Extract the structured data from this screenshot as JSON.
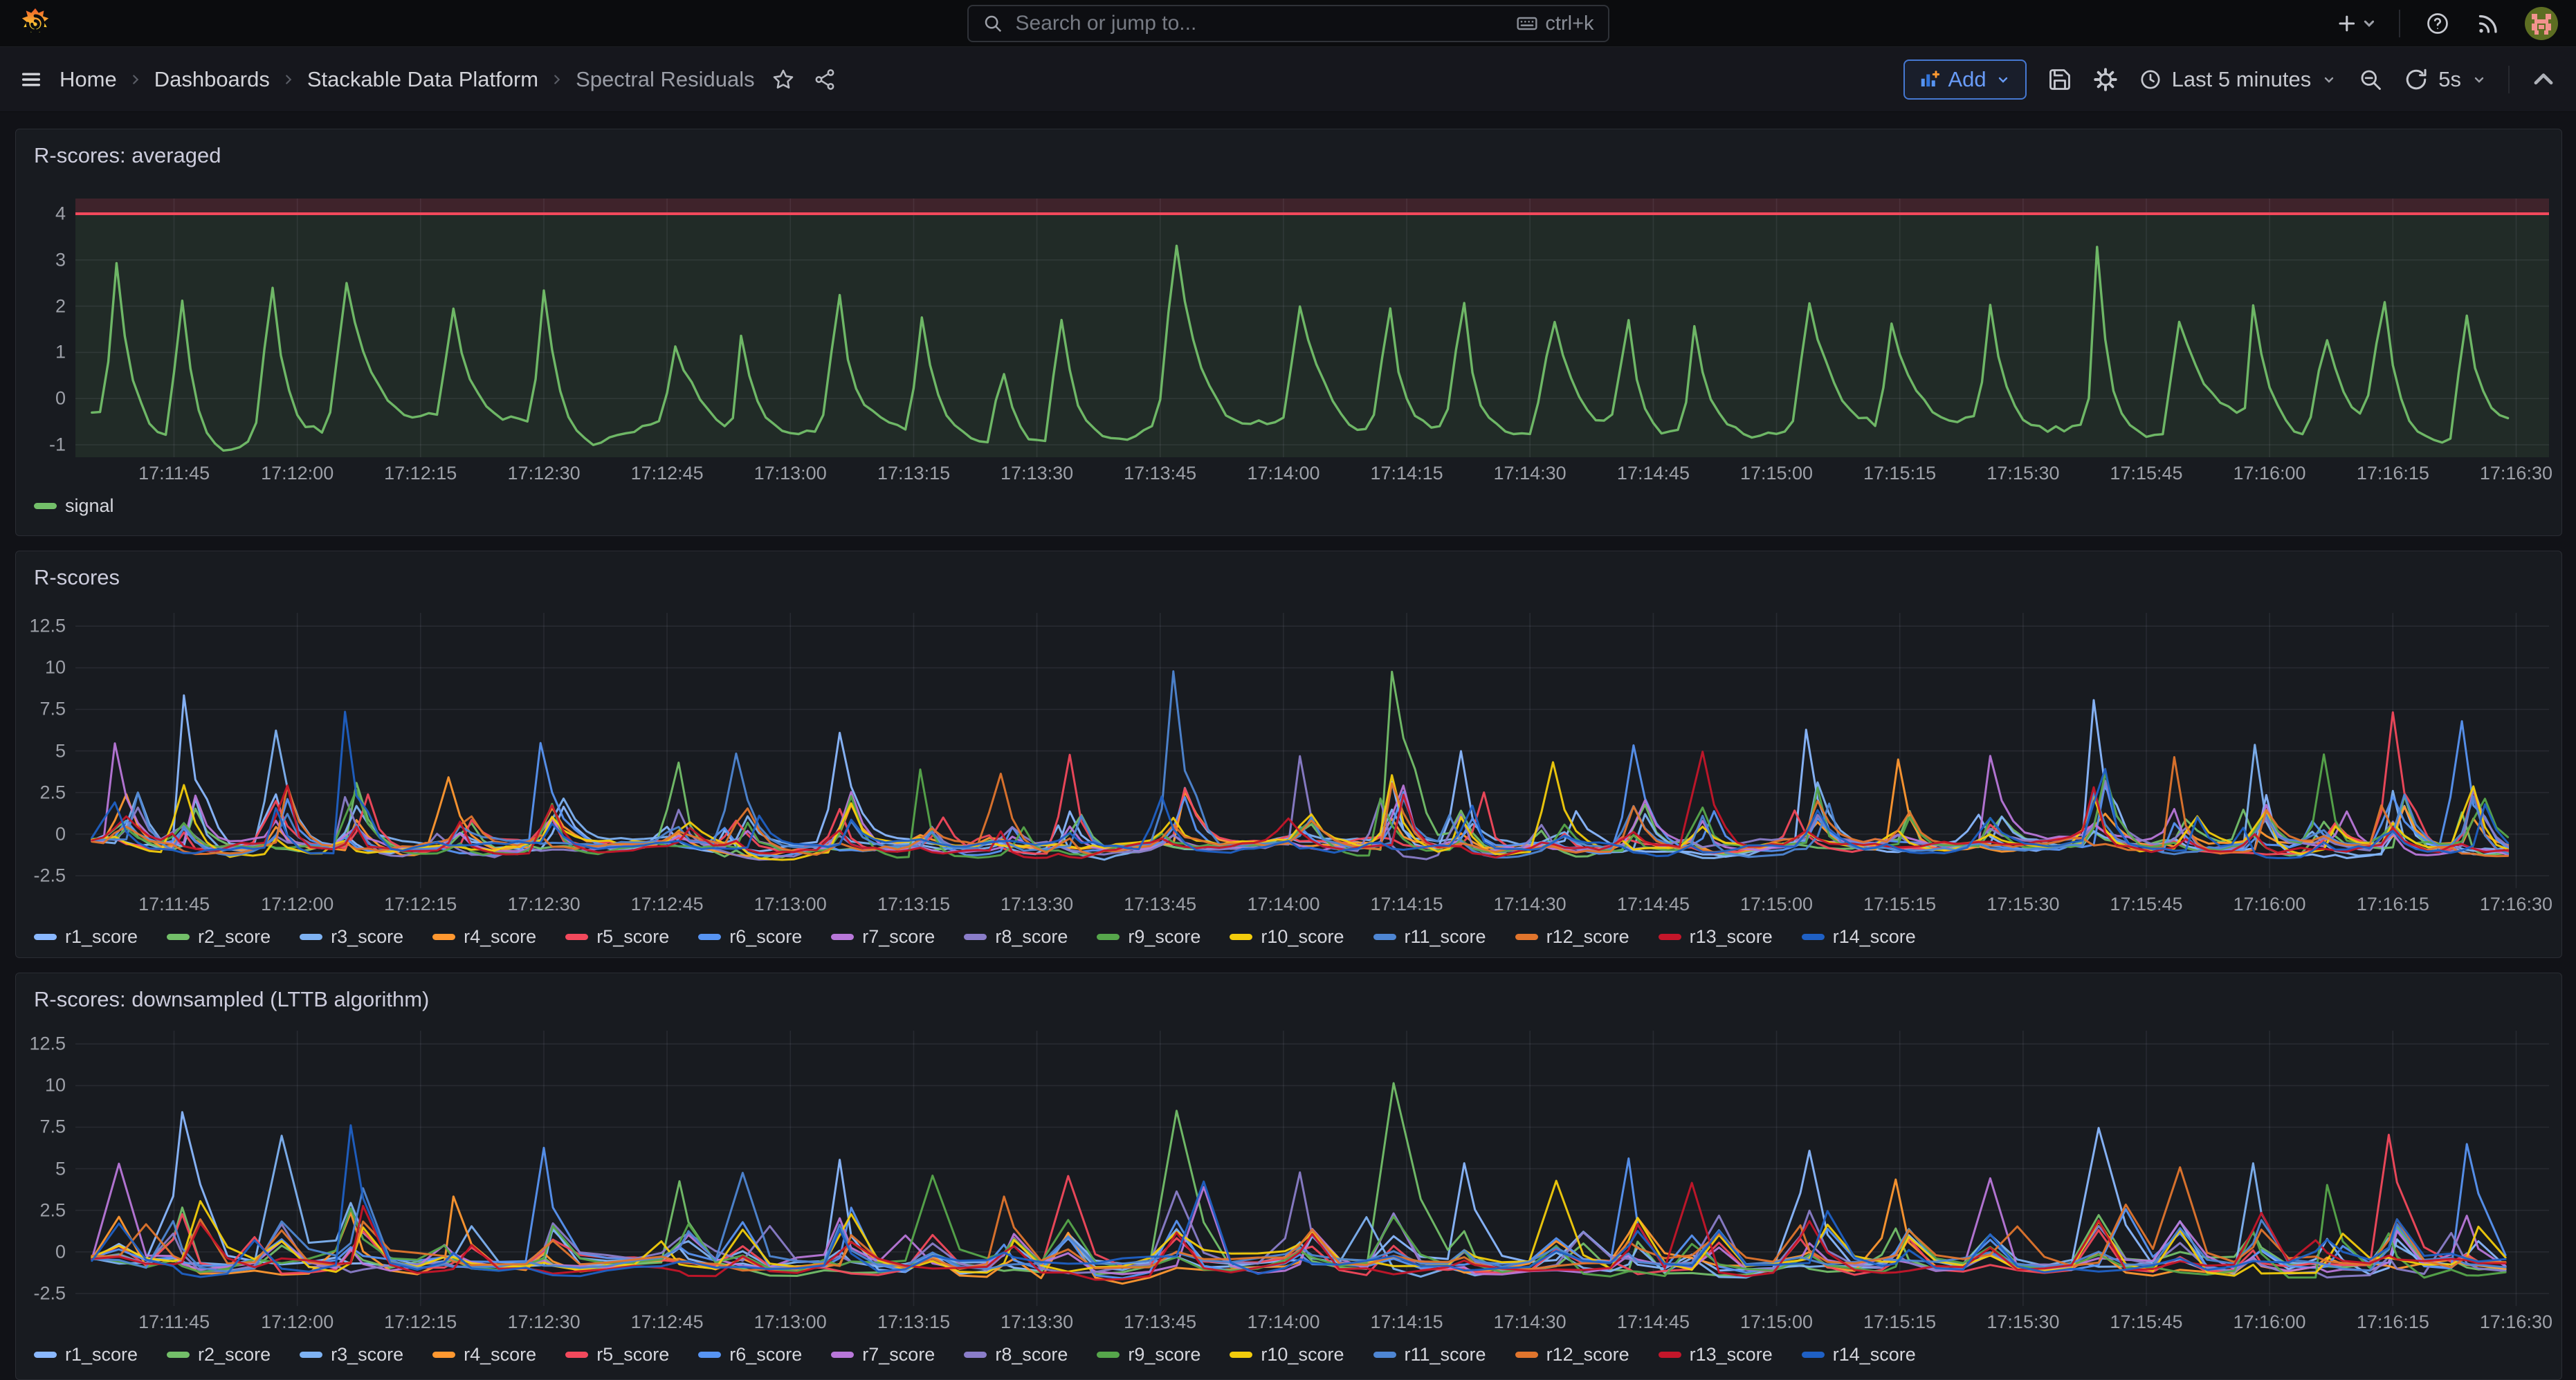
{
  "nav": {
    "search_placeholder": "Search or jump to...",
    "search_shortcut": "ctrl+k",
    "breadcrumb": [
      "Home",
      "Dashboards",
      "Stackable Data Platform",
      "Spectral Residuals"
    ],
    "add_label": "Add",
    "time_range": "Last 5 minutes",
    "refresh_interval": "5s"
  },
  "colors": {
    "accent_blue": "#4678D2",
    "threshold_red": "#F2495C",
    "signal_green": "#73BF69",
    "panel_bg": "#181B20",
    "page_bg": "#111217"
  },
  "chart_data": [
    {
      "type": "line",
      "title": "R-scores: averaged",
      "x_start": "17:11:33",
      "x_window_s": 301,
      "xticks": [
        "17:11:45",
        "17:12:00",
        "17:12:15",
        "17:12:30",
        "17:12:45",
        "17:13:00",
        "17:13:15",
        "17:13:30",
        "17:13:45",
        "17:14:00",
        "17:14:15",
        "17:14:30",
        "17:14:45",
        "17:15:00",
        "17:15:15",
        "17:15:30",
        "17:15:45",
        "17:16:00",
        "17:16:15",
        "17:16:30"
      ],
      "xtick_first_offset_s": 12,
      "xtick_interval_s": 15,
      "yticks": [
        4,
        3,
        2,
        1,
        0,
        -1
      ],
      "ylim": [
        -1.27,
        4.33
      ],
      "grid": true,
      "legend_position": "bottom",
      "threshold": {
        "value": 4,
        "line_color": "#F2495C",
        "fill_above": "rgba(242,73,92,0.18)",
        "fill_below": "rgba(115,191,105,0.10)"
      },
      "series": [
        {
          "name": "signal",
          "color": "#73BF69"
        }
      ],
      "spikes": [
        [
          5.5,
          3.2
        ],
        [
          13,
          3.0
        ],
        [
          24.5,
          2.95
        ],
        [
          33.5,
          3.05
        ],
        [
          46,
          2.1
        ],
        [
          57,
          2.85
        ],
        [
          73.5,
          1.45
        ],
        [
          81,
          2.0
        ],
        [
          93,
          2.5
        ],
        [
          103.5,
          2.3
        ],
        [
          113,
          1.4
        ],
        [
          120.5,
          2.45
        ],
        [
          134,
          3.7
        ],
        [
          149,
          2.35
        ],
        [
          160.5,
          2.4
        ],
        [
          169,
          2.55
        ],
        [
          180.5,
          2.2
        ],
        [
          189,
          2.15
        ],
        [
          197.5,
          2.05
        ],
        [
          211,
          2.45
        ],
        [
          221.5,
          2.2
        ],
        [
          233,
          2.3
        ],
        [
          246,
          3.65
        ],
        [
          256,
          2.2
        ],
        [
          265,
          2.35
        ],
        [
          274,
          2.0
        ],
        [
          281.5,
          2.6
        ],
        [
          291,
          2.3
        ]
      ],
      "baseline": -0.3,
      "seed": 7,
      "sample_step_s": 1,
      "walk": 0.16,
      "jitter": 0.07,
      "clamp_min": -1.18
    },
    {
      "type": "line",
      "title": "R-scores",
      "x_start": "17:11:33",
      "x_window_s": 301,
      "xticks": [
        "17:11:45",
        "17:12:00",
        "17:12:15",
        "17:12:30",
        "17:12:45",
        "17:13:00",
        "17:13:15",
        "17:13:30",
        "17:13:45",
        "17:14:00",
        "17:14:15",
        "17:14:30",
        "17:14:45",
        "17:15:00",
        "17:15:15",
        "17:15:30",
        "17:15:45",
        "17:16:00",
        "17:16:15",
        "17:16:30"
      ],
      "xtick_first_offset_s": 12,
      "xtick_interval_s": 15,
      "yticks": [
        12.5,
        10,
        7.5,
        5,
        2.5,
        0,
        -2.5
      ],
      "ylim": [
        -3.25,
        13.3
      ],
      "grid": true,
      "legend_position": "bottom",
      "series": [
        {
          "name": "r1_score",
          "color": "#8AB8FF"
        },
        {
          "name": "r2_score",
          "color": "#73BF69"
        },
        {
          "name": "r3_score",
          "color": "#7EB2F2"
        },
        {
          "name": "r4_score",
          "color": "#FF9830"
        },
        {
          "name": "r5_score",
          "color": "#F2495C"
        },
        {
          "name": "r6_score",
          "color": "#5794F2"
        },
        {
          "name": "r7_score",
          "color": "#B877D9"
        },
        {
          "name": "r8_score",
          "color": "#8A7DC9"
        },
        {
          "name": "r9_score",
          "color": "#56A64B"
        },
        {
          "name": "r10_score",
          "color": "#F2CC0C"
        },
        {
          "name": "r11_score",
          "color": "#4E86D3"
        },
        {
          "name": "r12_score",
          "color": "#E0752D"
        },
        {
          "name": "r13_score",
          "color": "#C4162A"
        },
        {
          "name": "r14_score",
          "color": "#1F60C4"
        }
      ],
      "events": [
        [
          5.5,
          5.7,
          6
        ],
        [
          13,
          8.7,
          0
        ],
        [
          24.5,
          7.0,
          2
        ],
        [
          33.5,
          8.1,
          13
        ],
        [
          46,
          4.0,
          3
        ],
        [
          57,
          6.3,
          5
        ],
        [
          73.5,
          4.9,
          1
        ],
        [
          81,
          5.2,
          10
        ],
        [
          93,
          6.3,
          0
        ],
        [
          103.5,
          5.0,
          8
        ],
        [
          113,
          4.2,
          11
        ],
        [
          120.5,
          5.5,
          4
        ],
        [
          134,
          10.0,
          10
        ],
        [
          149,
          5.2,
          7
        ],
        [
          160.5,
          10.4,
          1
        ],
        [
          169,
          5.8,
          0
        ],
        [
          180.5,
          5.0,
          9
        ],
        [
          189,
          6.2,
          5
        ],
        [
          197.5,
          5.6,
          12
        ],
        [
          211,
          6.9,
          0
        ],
        [
          221.5,
          5.2,
          3
        ],
        [
          233,
          5.0,
          6
        ],
        [
          246,
          8.2,
          0
        ],
        [
          256,
          5.4,
          11
        ],
        [
          265,
          6.1,
          2
        ],
        [
          274,
          5.3,
          8
        ],
        [
          281.5,
          7.7,
          4
        ],
        [
          291,
          7.4,
          5
        ]
      ],
      "baseline": -0.32,
      "seed": 11,
      "sample_step_s": 1.4,
      "walk": 0.26,
      "jitter": 0.14,
      "clamp_min": -1.9
    },
    {
      "type": "line",
      "title": "R-scores: downsampled (LTTB algorithm)",
      "downsampled": true,
      "x_start": "17:11:33",
      "x_window_s": 301,
      "xticks": [
        "17:11:45",
        "17:12:00",
        "17:12:15",
        "17:12:30",
        "17:12:45",
        "17:13:00",
        "17:13:15",
        "17:13:30",
        "17:13:45",
        "17:14:00",
        "17:14:15",
        "17:14:30",
        "17:14:45",
        "17:15:00",
        "17:15:15",
        "17:15:30",
        "17:15:45",
        "17:16:00",
        "17:16:15",
        "17:16:30"
      ],
      "xtick_first_offset_s": 12,
      "xtick_interval_s": 15,
      "yticks": [
        12.5,
        10,
        7.5,
        5,
        2.5,
        0,
        -2.5
      ],
      "ylim": [
        -3.25,
        13.3
      ],
      "grid": true,
      "legend_position": "bottom",
      "series": [
        {
          "name": "r1_score",
          "color": "#8AB8FF"
        },
        {
          "name": "r2_score",
          "color": "#73BF69"
        },
        {
          "name": "r3_score",
          "color": "#7EB2F2"
        },
        {
          "name": "r4_score",
          "color": "#FF9830"
        },
        {
          "name": "r5_score",
          "color": "#F2495C"
        },
        {
          "name": "r6_score",
          "color": "#5794F2"
        },
        {
          "name": "r7_score",
          "color": "#B877D9"
        },
        {
          "name": "r8_score",
          "color": "#8A7DC9"
        },
        {
          "name": "r9_score",
          "color": "#56A64B"
        },
        {
          "name": "r10_score",
          "color": "#F2CC0C"
        },
        {
          "name": "r11_score",
          "color": "#4E86D3"
        },
        {
          "name": "r12_score",
          "color": "#E0752D"
        },
        {
          "name": "r13_score",
          "color": "#C4162A"
        },
        {
          "name": "r14_score",
          "color": "#1F60C4"
        }
      ],
      "events": [
        [
          5.5,
          5.7,
          6
        ],
        [
          13,
          8.7,
          0
        ],
        [
          24.5,
          7.0,
          2
        ],
        [
          33.5,
          8.1,
          13
        ],
        [
          46,
          4.0,
          3
        ],
        [
          57,
          6.3,
          5
        ],
        [
          73.5,
          4.9,
          1
        ],
        [
          81,
          5.2,
          10
        ],
        [
          93,
          6.3,
          0
        ],
        [
          103.5,
          5.0,
          8
        ],
        [
          113,
          4.2,
          11
        ],
        [
          120.5,
          5.5,
          4
        ],
        [
          134,
          8.9,
          1
        ],
        [
          149,
          5.2,
          7
        ],
        [
          160.5,
          10.7,
          1
        ],
        [
          169,
          5.8,
          0
        ],
        [
          180.5,
          5.0,
          9
        ],
        [
          189,
          6.2,
          5
        ],
        [
          197.5,
          5.6,
          12
        ],
        [
          211,
          6.9,
          0
        ],
        [
          221.5,
          5.2,
          3
        ],
        [
          233,
          5.0,
          6
        ],
        [
          246,
          7.8,
          0
        ],
        [
          256,
          5.4,
          11
        ],
        [
          265,
          6.1,
          2
        ],
        [
          274,
          5.3,
          8
        ],
        [
          281.5,
          7.5,
          4
        ],
        [
          291,
          7.2,
          5
        ]
      ],
      "baseline": -0.32,
      "seed": 23,
      "sample_step_s": 3.3,
      "walk": 0.34,
      "jitter": 0.2,
      "clamp_min": -1.95
    }
  ]
}
